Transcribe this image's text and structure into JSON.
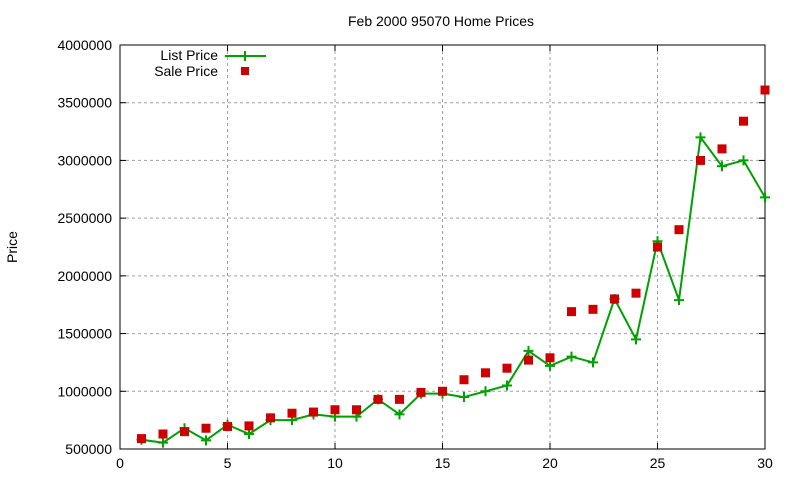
{
  "chart_data": {
    "type": "line",
    "title": "Feb 2000 95070 Home Prices",
    "xlabel": "",
    "ylabel": "Price",
    "xlim": [
      0,
      30
    ],
    "ylim": [
      500000,
      4000000
    ],
    "xticks": [
      0,
      5,
      10,
      15,
      20,
      25,
      30
    ],
    "yticks": [
      500000,
      1000000,
      1500000,
      2000000,
      2500000,
      3000000,
      3500000,
      4000000
    ],
    "grid": true,
    "legend_position": "top-left",
    "x": [
      1,
      2,
      3,
      4,
      5,
      6,
      7,
      8,
      9,
      10,
      11,
      12,
      13,
      14,
      15,
      16,
      17,
      18,
      19,
      20,
      21,
      22,
      23,
      24,
      25,
      26,
      27,
      28,
      29,
      30
    ],
    "series": [
      {
        "name": "List Price",
        "style": "linespoints",
        "color": "#00a000",
        "values": [
          580000,
          555000,
          680000,
          575000,
          710000,
          630000,
          750000,
          750000,
          800000,
          780000,
          780000,
          930000,
          800000,
          980000,
          980000,
          950000,
          1000000,
          1050000,
          1350000,
          1220000,
          1300000,
          1250000,
          1800000,
          1450000,
          2300000,
          1790000,
          3200000,
          2950000,
          3000000,
          2680000
        ]
      },
      {
        "name": "Sale Price",
        "style": "points",
        "color": "#cc0000",
        "values": [
          590000,
          630000,
          650000,
          680000,
          695000,
          700000,
          770000,
          810000,
          820000,
          840000,
          840000,
          930000,
          930000,
          990000,
          1000000,
          1100000,
          1160000,
          1200000,
          1270000,
          1290000,
          1690000,
          1710000,
          1800000,
          1850000,
          2250000,
          2400000,
          3000000,
          3100000,
          3340000,
          3610000
        ]
      }
    ]
  },
  "legend": {
    "list_label": "List Price",
    "sale_label": "Sale Price"
  }
}
